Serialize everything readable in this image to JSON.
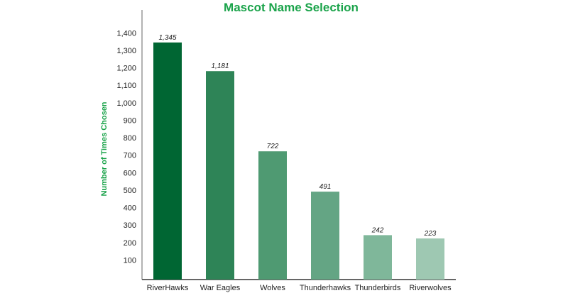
{
  "chart_data": {
    "type": "bar",
    "title": "Mascot Name Selection",
    "xlabel": "",
    "ylabel": "Number of Times Chosen",
    "categories": [
      "RiverHawks",
      "War Eagles",
      "Wolves",
      "Thunderhawks",
      "Thunderbirds",
      "Riverwolves"
    ],
    "values": [
      1345,
      1181,
      722,
      491,
      242,
      223
    ],
    "data_labels": [
      "1,345",
      "1,181",
      "722",
      "491",
      "242",
      "223"
    ],
    "yticks": [
      "100",
      "200",
      "300",
      "400",
      "500",
      "600",
      "700",
      "800",
      "900",
      "1,000",
      "1,100",
      "1,200",
      "1,300",
      "1,400"
    ],
    "ylim": [
      0,
      1500
    ],
    "grid": false,
    "colors": [
      "#006633",
      "#2e8457",
      "#4f9a72",
      "#64a584",
      "#7fb79a",
      "#9ec8b2"
    ]
  }
}
